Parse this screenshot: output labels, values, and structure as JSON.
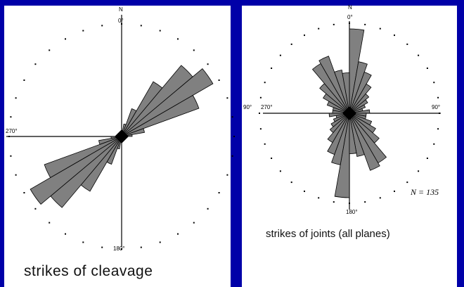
{
  "chart_data": [
    {
      "type": "rose",
      "caption": "strikes of cleavage",
      "compass_labels": {
        "north_letter": "N",
        "north": "0°",
        "west": "270°",
        "south": "180°"
      },
      "bin_width_deg": 10,
      "bins": [
        {
          "from": 10,
          "to": 20,
          "value": 0.12
        },
        {
          "from": 20,
          "to": 30,
          "value": 0.28
        },
        {
          "from": 30,
          "to": 40,
          "value": 0.6
        },
        {
          "from": 40,
          "to": 50,
          "value": 0.88
        },
        {
          "from": 50,
          "to": 60,
          "value": 1.0
        },
        {
          "from": 60,
          "to": 70,
          "value": 0.78
        },
        {
          "from": 70,
          "to": 80,
          "value": 0.22
        },
        {
          "from": 80,
          "to": 90,
          "value": 0.1
        }
      ],
      "symmetric": true,
      "colors": {
        "petal": "#808080",
        "outline": "#000000"
      }
    },
    {
      "type": "rose",
      "caption": "strikes of joints (all planes)",
      "compass_labels": {
        "north_letter": "N",
        "north": "0°",
        "west": "270°",
        "east": "90°",
        "south": "180°",
        "outer_west": "90°"
      },
      "n_label": "N = 135",
      "bin_width_deg": 10,
      "bins": [
        {
          "from": 0,
          "to": 10,
          "value": 1.0
        },
        {
          "from": 10,
          "to": 20,
          "value": 0.62
        },
        {
          "from": 20,
          "to": 30,
          "value": 0.52
        },
        {
          "from": 30,
          "to": 40,
          "value": 0.4
        },
        {
          "from": 40,
          "to": 50,
          "value": 0.3
        },
        {
          "from": 50,
          "to": 60,
          "value": 0.25
        },
        {
          "from": 60,
          "to": 70,
          "value": 0.2
        },
        {
          "from": 70,
          "to": 80,
          "value": 0.16
        },
        {
          "from": 80,
          "to": 90,
          "value": 0.24
        },
        {
          "from": 90,
          "to": 100,
          "value": 0.2
        },
        {
          "from": 100,
          "to": 110,
          "value": 0.2
        },
        {
          "from": 110,
          "to": 120,
          "value": 0.28
        },
        {
          "from": 120,
          "to": 130,
          "value": 0.36
        },
        {
          "from": 130,
          "to": 140,
          "value": 0.46
        },
        {
          "from": 140,
          "to": 150,
          "value": 0.68
        },
        {
          "from": 150,
          "to": 160,
          "value": 0.72
        },
        {
          "from": 160,
          "to": 170,
          "value": 0.52
        },
        {
          "from": 170,
          "to": 180,
          "value": 0.48
        }
      ],
      "symmetric": true,
      "colors": {
        "petal": "#808080",
        "outline": "#000000"
      }
    }
  ]
}
